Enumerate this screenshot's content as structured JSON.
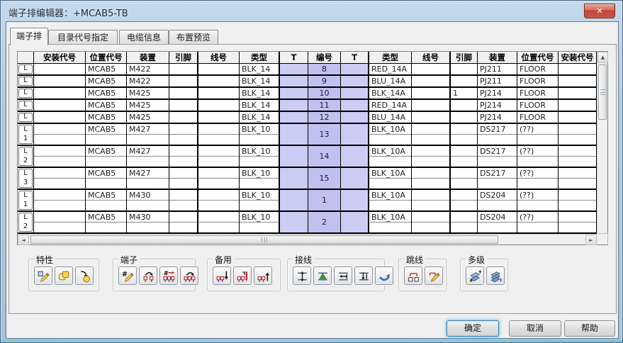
{
  "window": {
    "title": "端子排编辑器：+MCAB5-TB"
  },
  "icons": {
    "close": "✕",
    "scroll_up": "▲",
    "scroll_down": "▼",
    "scroll_left": "◄",
    "scroll_right": "►"
  },
  "tabs": [
    {
      "name": "tab-terminal-strip",
      "label": "端子排",
      "active": true
    },
    {
      "name": "tab-catalog-assignment",
      "label": "目录代号指定",
      "active": false
    },
    {
      "name": "tab-cable-info",
      "label": "电缆信息",
      "active": false
    },
    {
      "name": "tab-layout-preview",
      "label": "布置预览",
      "active": false
    }
  ],
  "grid": {
    "headers": [
      "",
      "安装代号",
      "位置代号",
      "装置",
      "引脚",
      "线号",
      "类型",
      "T",
      "编号",
      "T",
      "类型",
      "线号",
      "引脚",
      "装置",
      "位置代号",
      "安装代号"
    ],
    "rows": [
      {
        "hdr": "L",
        "sub": "",
        "lines": 1,
        "left": {
          "inst": "",
          "loc": "MCAB5",
          "dev": "M422",
          "pin": "",
          "wire": "",
          "type": "BLK_14"
        },
        "num": "8",
        "right": {
          "type": "RED_14A",
          "wire": "",
          "pin": "",
          "dev": "PJ211",
          "loc": "FLOOR",
          "inst": ""
        }
      },
      {
        "hdr": "L",
        "sub": "",
        "lines": 1,
        "left": {
          "inst": "",
          "loc": "MCAB5",
          "dev": "M422",
          "pin": "",
          "wire": "",
          "type": "BLK_14"
        },
        "num": "9",
        "right": {
          "type": "BLU_14A",
          "wire": "",
          "pin": "",
          "dev": "PJ211",
          "loc": "FLOOR",
          "inst": ""
        }
      },
      {
        "hdr": "L",
        "sub": "",
        "lines": 1,
        "left": {
          "inst": "",
          "loc": "MCAB5",
          "dev": "M425",
          "pin": "",
          "wire": "",
          "type": "BLK_14"
        },
        "num": "10",
        "right": {
          "type": "BLK_14A",
          "wire": "",
          "pin": "1",
          "dev": "PJ214",
          "loc": "FLOOR",
          "inst": ""
        }
      },
      {
        "hdr": "L",
        "sub": "",
        "lines": 1,
        "left": {
          "inst": "",
          "loc": "MCAB5",
          "dev": "M425",
          "pin": "",
          "wire": "",
          "type": "BLK_14"
        },
        "num": "11",
        "right": {
          "type": "RED_14A",
          "wire": "",
          "pin": "",
          "dev": "PJ214",
          "loc": "FLOOR",
          "inst": ""
        }
      },
      {
        "hdr": "L",
        "sub": "",
        "lines": 1,
        "left": {
          "inst": "",
          "loc": "MCAB5",
          "dev": "M425",
          "pin": "",
          "wire": "",
          "type": "BLK_14"
        },
        "num": "12",
        "right": {
          "type": "BLU_14A",
          "wire": "",
          "pin": "",
          "dev": "PJ214",
          "loc": "FLOOR",
          "inst": ""
        }
      },
      {
        "hdr": "L",
        "sub": "1",
        "lines": 2,
        "left": {
          "inst": "",
          "loc": "MCAB5",
          "dev": "M427",
          "pin": "",
          "wire": "",
          "type": "BLK_10"
        },
        "num": "13",
        "right": {
          "type": "BLK_10A",
          "wire": "",
          "pin": "",
          "dev": "DS217",
          "loc": "(??)",
          "inst": ""
        }
      },
      {
        "hdr": "L",
        "sub": "2",
        "lines": 2,
        "left": {
          "inst": "",
          "loc": "MCAB5",
          "dev": "M427",
          "pin": "",
          "wire": "",
          "type": "BLK_10"
        },
        "num": "14",
        "right": {
          "type": "BLK_10A",
          "wire": "",
          "pin": "",
          "dev": "DS217",
          "loc": "(??)",
          "inst": ""
        }
      },
      {
        "hdr": "L",
        "sub": "3",
        "lines": 2,
        "left": {
          "inst": "",
          "loc": "MCAB5",
          "dev": "M427",
          "pin": "",
          "wire": "",
          "type": "BLK_10"
        },
        "num": "15",
        "right": {
          "type": "BLK_10A",
          "wire": "",
          "pin": "",
          "dev": "DS217",
          "loc": "(??)",
          "inst": ""
        }
      },
      {
        "hdr": "L",
        "sub": "1",
        "lines": 2,
        "left": {
          "inst": "",
          "loc": "MCAB5",
          "dev": "M430",
          "pin": "",
          "wire": "",
          "type": "BLK_10"
        },
        "num": "1",
        "right": {
          "type": "BLK_10A",
          "wire": "",
          "pin": "",
          "dev": "DS204",
          "loc": "(??)",
          "inst": ""
        }
      },
      {
        "hdr": "L",
        "sub": "2",
        "lines": 2,
        "left": {
          "inst": "",
          "loc": "MCAB5",
          "dev": "M430",
          "pin": "",
          "wire": "",
          "type": "BLK_10"
        },
        "num": "2",
        "right": {
          "type": "BLK_10A",
          "wire": "",
          "pin": "",
          "dev": "DS204",
          "loc": "(??)",
          "inst": ""
        }
      }
    ]
  },
  "groups": [
    {
      "label": "特性",
      "buttons": [
        {
          "name": "edit-properties-button",
          "icon": "props-edit-icon"
        },
        {
          "name": "copy-properties-button",
          "icon": "props-copy-icon"
        },
        {
          "name": "paste-properties-button",
          "icon": "props-paste-icon"
        }
      ]
    },
    {
      "label": "端子",
      "buttons": [
        {
          "name": "renumber-terminal-button",
          "icon": "terminal-renumber-icon"
        },
        {
          "name": "move-terminal-button",
          "icon": "terminal-move-icon"
        },
        {
          "name": "renumber-strip-button",
          "icon": "terminal-renumber-sequence-icon"
        },
        {
          "name": "reorder-terminal-button",
          "icon": "terminal-reorder-icon"
        }
      ]
    },
    {
      "label": "备用",
      "buttons": [
        {
          "name": "insert-spare-below-button",
          "icon": "spare-insert-below-icon"
        },
        {
          "name": "insert-spare-marker-button",
          "icon": "spare-insert-marker-icon"
        },
        {
          "name": "insert-spare-above-button",
          "icon": "spare-insert-above-icon"
        }
      ]
    },
    {
      "label": "接线",
      "buttons": [
        {
          "name": "move-wire-button",
          "icon": "wire-move-icon"
        },
        {
          "name": "move-wire-up-button",
          "icon": "wire-move-up-icon"
        },
        {
          "name": "insert-wire-button",
          "icon": "wire-insert-icon"
        },
        {
          "name": "delete-wire-button",
          "icon": "wire-delete-icon"
        },
        {
          "name": "reverse-wire-button",
          "icon": "wire-reverse-icon"
        }
      ]
    },
    {
      "label": "跳线",
      "buttons": [
        {
          "name": "add-jumper-button",
          "icon": "jumper-add-icon"
        },
        {
          "name": "edit-jumper-button",
          "icon": "jumper-edit-icon"
        }
      ]
    },
    {
      "label": "多级",
      "buttons": [
        {
          "name": "add-level-button",
          "icon": "multilevel-add-icon"
        },
        {
          "name": "remove-level-button",
          "icon": "multilevel-remove-icon"
        }
      ]
    }
  ],
  "footer": {
    "ok": "确定",
    "cancel": "取消",
    "help": "帮助"
  },
  "colors": {
    "t_cell": "#CCCCF4",
    "num_cell": "#C1C1F0",
    "close_red": "#C95A48",
    "grid_border": "#000000"
  }
}
